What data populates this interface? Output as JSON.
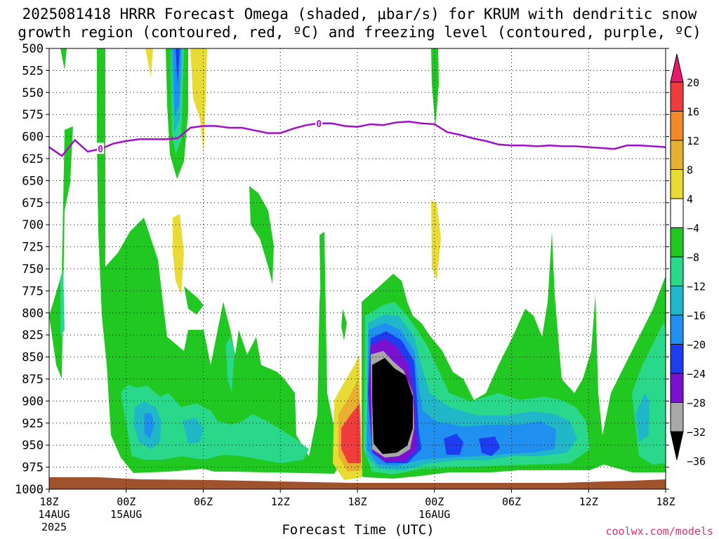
{
  "title": {
    "line1": "2025081418 HRRR Forecast Omega (shaded, μbar/s) for KRUM with dendritic snow",
    "line2": "growth region (contoured, red, ºC) and freezing level (contoured, purple, ºC)"
  },
  "xlabel": "Forecast Time (UTC)",
  "credit": "coolwx.com/models",
  "chart_data": {
    "type": "heatmap",
    "y_axis": {
      "label": "",
      "ticks": [
        500,
        525,
        550,
        575,
        600,
        625,
        650,
        675,
        700,
        725,
        750,
        775,
        800,
        825,
        850,
        875,
        900,
        925,
        950,
        975,
        1000
      ],
      "tick_labels": [
        "500",
        "525",
        "550",
        "575",
        "600",
        "625",
        "650",
        "675",
        "700",
        "725",
        "750",
        "775",
        "800",
        "825",
        "850",
        "875",
        "900",
        "925",
        "950",
        "975",
        "1000"
      ],
      "range": [
        500,
        1000
      ],
      "inverted": true
    },
    "x_axis": {
      "range_hours": [
        0,
        48
      ],
      "ticks": [
        {
          "hour": 0,
          "lines": [
            "18Z",
            "14AUG",
            "2025"
          ]
        },
        {
          "hour": 6,
          "lines": [
            "00Z",
            "15AUG"
          ]
        },
        {
          "hour": 12,
          "lines": [
            "06Z"
          ]
        },
        {
          "hour": 18,
          "lines": [
            "12Z"
          ]
        },
        {
          "hour": 24,
          "lines": [
            "18Z"
          ]
        },
        {
          "hour": 30,
          "lines": [
            "00Z",
            "16AUG"
          ]
        },
        {
          "hour": 36,
          "lines": [
            "06Z"
          ]
        },
        {
          "hour": 42,
          "lines": [
            "12Z"
          ]
        },
        {
          "hour": 48,
          "lines": [
            "18Z"
          ]
        }
      ]
    },
    "grid": true,
    "colorbar": {
      "labels": [
        "20",
        "16",
        "12",
        "8",
        "4",
        "−4",
        "−8",
        "−12",
        "−16",
        "−20",
        "−24",
        "−28",
        "−32",
        "−36"
      ],
      "colors": [
        "#e8186a",
        "#f03c3c",
        "#f08a28",
        "#e8b030",
        "#e8dc34",
        "#ffffff",
        "#22c822",
        "#2ad88c",
        "#20b8c8",
        "#2090f0",
        "#1e3cf0",
        "#7a10d0",
        "#a8a8a8",
        "#000000"
      ]
    },
    "freezing_level": {
      "label": "0",
      "color": "#a010c8",
      "hours": [
        0,
        1,
        2,
        3,
        4,
        5,
        6,
        7,
        8,
        9,
        10,
        11,
        12,
        13,
        14,
        15,
        16,
        17,
        18,
        19,
        20,
        21,
        22,
        23,
        24,
        25,
        26,
        27,
        28,
        29,
        30,
        31,
        32,
        33,
        34,
        35,
        36,
        37,
        38,
        39,
        40,
        41,
        42,
        43,
        44,
        45,
        46,
        47,
        48
      ],
      "pressure": [
        612,
        622,
        604,
        617,
        614,
        608,
        605,
        603,
        603,
        603,
        602,
        590,
        588,
        588,
        590,
        590,
        593,
        596,
        596,
        591,
        587,
        585,
        585,
        588,
        589,
        586,
        587,
        584,
        583,
        585,
        586,
        595,
        598,
        602,
        605,
        609,
        610,
        610,
        611,
        610,
        611,
        611,
        612,
        613,
        614,
        610,
        610,
        611,
        612
      ],
      "label_hours": [
        4,
        21
      ]
    },
    "shaded_regions": [
      {
        "value_band": "-4 to -8",
        "color": "#22c822"
      },
      {
        "value_band": "-8 to -12",
        "color": "#2ad88c"
      },
      {
        "value_band": "-12 to -16",
        "color": "#20b8c8"
      },
      {
        "value_band": "-16 to -20",
        "color": "#2090f0"
      },
      {
        "value_band": "-20 to -24",
        "color": "#1e3cf0"
      },
      {
        "value_band": "-28 to -32",
        "color": "#7a10d0"
      },
      {
        "value_band": "-32 to -36",
        "color": "#a8a8a8"
      },
      {
        "value_band": "< -36",
        "color": "#000000"
      },
      {
        "value_band": "4 to 8",
        "color": "#e8dc34"
      },
      {
        "value_band": "8 to 12",
        "color": "#e8b030"
      },
      {
        "value_band": "16 to 20",
        "color": "#f03c3c"
      }
    ],
    "terrain_color": "#a0522d"
  }
}
